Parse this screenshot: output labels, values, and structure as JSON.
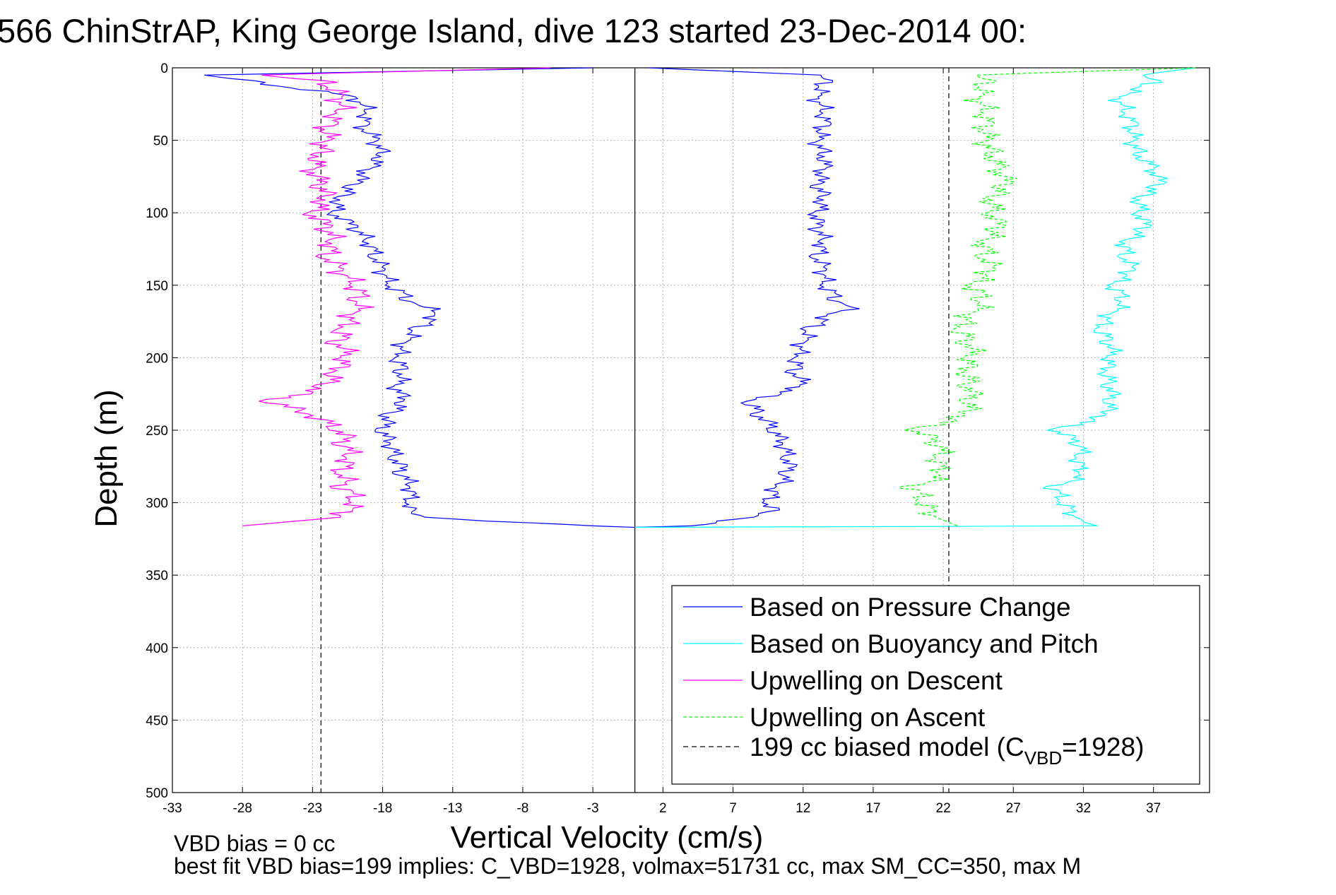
{
  "title": "566 ChinStrAP, King George Island, dive 123 started 23-Dec-2014 00:",
  "footer": {
    "line1": "VBD bias = 0 cc",
    "line2": "best fit VBD bias=199 implies: C_VBD=1928, volmax=51731 cc, max SM_CC=350, max M"
  },
  "chart_data": {
    "type": "line",
    "title": "566 ChinStrAP, King George Island, dive 123 started 23-Dec-2014 00:",
    "xlabel": "Vertical Velocity (cm/s)",
    "ylabel": "Depth (m)",
    "xlim": [
      -33,
      41
    ],
    "ylim": [
      0,
      500
    ],
    "y_reversed": true,
    "grid": true,
    "legend_position": "bottom-right",
    "xticks": [
      -33,
      -28,
      -23,
      -18,
      -13,
      -8,
      -3,
      2,
      7,
      12,
      17,
      22,
      27,
      32,
      37
    ],
    "yticks": [
      0,
      50,
      100,
      150,
      200,
      250,
      300,
      350,
      400,
      450,
      500
    ],
    "reference_lines": [
      {
        "orientation": "vertical",
        "x": 0,
        "style": "solid",
        "color": "#000000"
      },
      {
        "orientation": "vertical",
        "x": -22.4,
        "style": "dashed",
        "color": "#000000"
      },
      {
        "orientation": "vertical",
        "x": 22.4,
        "style": "dashed",
        "color": "#000000"
      }
    ],
    "series": [
      {
        "name": "Based on Pressure Change",
        "color": "#0000ff",
        "dash": "solid",
        "depth": [
          0,
          5,
          10,
          20,
          30,
          40,
          50,
          60,
          70,
          80,
          90,
          100,
          110,
          120,
          130,
          140,
          150,
          160,
          165,
          170,
          180,
          190,
          200,
          210,
          220,
          230,
          240,
          250,
          260,
          270,
          280,
          290,
          300,
          305,
          310,
          314,
          316,
          317
        ],
        "descent": [
          -3,
          -31,
          -27,
          -20,
          -19,
          -19.5,
          -18.5,
          -18,
          -19,
          -20,
          -21,
          -21.5,
          -20,
          -19,
          -18.5,
          -18,
          -17.5,
          -16,
          -15,
          -14,
          -15.5,
          -16.5,
          -17,
          -16.5,
          -17,
          -16.5,
          -17.5,
          -18,
          -17.5,
          -17,
          -16.5,
          -16,
          -16,
          -16.5,
          -15,
          -8,
          -3,
          0
        ],
        "ascent": [
          1,
          13,
          13.5,
          13,
          13.5,
          13.5,
          13,
          13.5,
          13.5,
          13,
          13.5,
          13,
          13,
          13.5,
          13,
          13.5,
          13.5,
          14.5,
          15.5,
          14,
          12.5,
          12,
          11.5,
          11.5,
          12,
          8,
          9,
          10,
          10.5,
          11,
          11,
          10,
          9.5,
          9.5,
          8.5,
          5,
          4,
          0
        ]
      },
      {
        "name": "Based on Buoyancy and Pitch",
        "color": "#00ffff",
        "dash": "solid",
        "depth": [
          0,
          5,
          10,
          20,
          30,
          40,
          50,
          60,
          70,
          80,
          90,
          100,
          110,
          120,
          130,
          140,
          150,
          160,
          170,
          180,
          190,
          200,
          210,
          220,
          230,
          240,
          250,
          260,
          270,
          280,
          290,
          300,
          310,
          316,
          317
        ],
        "ascent": [
          40,
          36,
          37,
          34.5,
          35,
          35.5,
          35.5,
          36,
          37,
          37.5,
          36,
          36,
          36.5,
          35,
          35,
          35.5,
          34,
          35,
          34,
          33,
          34,
          34,
          33.5,
          34,
          34,
          33.5,
          30,
          32,
          31.5,
          32,
          30,
          30.5,
          31.5,
          33,
          0
        ]
      },
      {
        "name": "Upwelling on Descent",
        "color": "#ff00ff",
        "dash": "solid",
        "depth": [
          0,
          5,
          10,
          20,
          30,
          40,
          50,
          60,
          70,
          80,
          90,
          100,
          110,
          120,
          130,
          140,
          150,
          160,
          170,
          180,
          190,
          200,
          210,
          220,
          230,
          240,
          250,
          260,
          270,
          280,
          290,
          300,
          310,
          316
        ],
        "values": [
          -6,
          -27,
          -22,
          -21,
          -21,
          -22,
          -22,
          -22.5,
          -23,
          -22.5,
          -22,
          -23,
          -22,
          -21.5,
          -22,
          -21,
          -20,
          -19.5,
          -20,
          -21,
          -21,
          -20.5,
          -21.5,
          -22,
          -26,
          -23,
          -21,
          -20.5,
          -20.5,
          -21,
          -20.5,
          -20,
          -21,
          -28
        ]
      },
      {
        "name": "Upwelling on Ascent",
        "color": "#00ff00",
        "dash": "dashed",
        "depth": [
          0,
          5,
          10,
          20,
          30,
          40,
          50,
          60,
          70,
          80,
          90,
          100,
          110,
          120,
          130,
          140,
          150,
          160,
          170,
          180,
          190,
          200,
          210,
          220,
          230,
          240,
          250,
          260,
          270,
          280,
          290,
          300,
          310,
          316
        ],
        "values": [
          40,
          24,
          25,
          24.5,
          25,
          25,
          25,
          25.5,
          26,
          26.5,
          25.5,
          25.5,
          26,
          25,
          25,
          25.5,
          24,
          25,
          24,
          23,
          24,
          24,
          23.5,
          24,
          24,
          23.5,
          20,
          22,
          21.5,
          22,
          20,
          20.5,
          21.5,
          23
        ]
      }
    ],
    "model_line": {
      "label_prefix": "199 cc biased model (C",
      "label_sub": "VBD",
      "label_suffix": "=1928)",
      "color": "#000000",
      "dash": "dashed"
    }
  }
}
